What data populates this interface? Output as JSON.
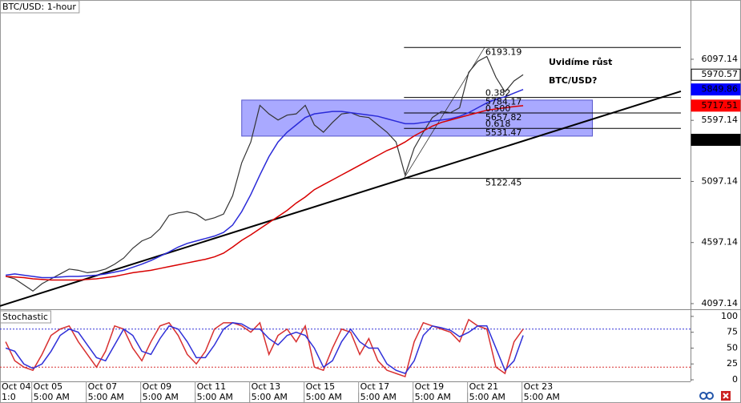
{
  "chart_data": [
    {
      "type": "line",
      "title": "BTC/USD: 1-hour",
      "annotation": [
        "Uvidíme růst",
        "BTC/USD?"
      ],
      "x": [
        6,
        14,
        22,
        30,
        38,
        46,
        54,
        62,
        70,
        78,
        86,
        94,
        102,
        110,
        118,
        126,
        134,
        142,
        150,
        158,
        166,
        174,
        182,
        190,
        198,
        206,
        214,
        222,
        230,
        238,
        246,
        254,
        262,
        270,
        278,
        286,
        294,
        302,
        310,
        318,
        326,
        334,
        342,
        350,
        358,
        366,
        374,
        382,
        390,
        398,
        406,
        414,
        422,
        430,
        438,
        446,
        454,
        462
      ],
      "series": [
        {
          "color": "#333333",
          "tag_color": "#ffffff",
          "values": [
            4320,
            4300,
            4250,
            4200,
            4260,
            4300,
            4340,
            4380,
            4370,
            4350,
            4360,
            4380,
            4420,
            4470,
            4550,
            4610,
            4640,
            4710,
            4820,
            4840,
            4850,
            4830,
            4780,
            4800,
            4830,
            4980,
            5250,
            5420,
            5720,
            5650,
            5600,
            5640,
            5650,
            5720,
            5560,
            5500,
            5580,
            5650,
            5660,
            5630,
            5620,
            5560,
            5500,
            5420,
            5150,
            5370,
            5500,
            5620,
            5670,
            5660,
            5700,
            5990,
            6080,
            6120,
            5950,
            5830,
            5920,
            5970.57
          ]
        },
        {
          "color": "#2a2ad8",
          "tag_color": "#0000ff",
          "values": [
            4330,
            4340,
            4330,
            4320,
            4310,
            4310,
            4315,
            4320,
            4320,
            4325,
            4330,
            4340,
            4355,
            4370,
            4395,
            4420,
            4450,
            4485,
            4520,
            4560,
            4590,
            4610,
            4630,
            4650,
            4680,
            4740,
            4850,
            4990,
            5150,
            5300,
            5420,
            5500,
            5560,
            5620,
            5650,
            5660,
            5670,
            5670,
            5660,
            5650,
            5640,
            5630,
            5610,
            5590,
            5570,
            5570,
            5580,
            5590,
            5600,
            5610,
            5630,
            5660,
            5700,
            5740,
            5770,
            5790,
            5820,
            5849.86
          ]
        },
        {
          "color": "#d80000",
          "tag_color": "#ff0000",
          "values": [
            4320,
            4315,
            4310,
            4300,
            4295,
            4290,
            4290,
            4290,
            4290,
            4295,
            4300,
            4310,
            4320,
            4335,
            4350,
            4360,
            4370,
            4385,
            4400,
            4415,
            4430,
            4445,
            4460,
            4480,
            4510,
            4560,
            4615,
            4660,
            4710,
            4760,
            4810,
            4860,
            4920,
            4970,
            5030,
            5070,
            5110,
            5150,
            5190,
            5230,
            5270,
            5310,
            5350,
            5380,
            5420,
            5470,
            5510,
            5550,
            5580,
            5600,
            5620,
            5640,
            5660,
            5680,
            5690,
            5700,
            5710,
            5717.51
          ]
        }
      ],
      "extra_tag": {
        "value": 5437.74,
        "color": "#000000"
      },
      "trendline": {
        "x": [
          1,
          601
        ],
        "values": [
          4078,
          5835
        ],
        "color": "#000000"
      },
      "zone": {
        "x": [
          214,
          523
        ],
        "values": [
          5468,
          5763
        ],
        "color": "#8c8cff"
      },
      "fibonacci": {
        "xlim": [
          357,
          601
        ],
        "high": {
          "x": 428,
          "value": 6193.19
        },
        "low": {
          "x": 357,
          "value": 5122.45
        },
        "levels": [
          {
            "ratio": "0.382",
            "value": 5784.17
          },
          {
            "ratio": "0.500",
            "value": 5657.82
          },
          {
            "ratio": "0.618",
            "value": 5531.47
          }
        ]
      },
      "xlim": [
        1,
        609.5
      ],
      "ylim": [
        4051,
        6582
      ],
      "yticks": [
        4097.14,
        4597.14,
        5097.14,
        5597.14,
        6097.14
      ]
    },
    {
      "type": "line",
      "title": "Stochastic",
      "x": [
        6,
        14,
        22,
        30,
        38,
        46,
        54,
        62,
        70,
        78,
        86,
        94,
        102,
        110,
        118,
        126,
        134,
        142,
        150,
        158,
        166,
        174,
        182,
        190,
        198,
        206,
        214,
        222,
        230,
        238,
        246,
        254,
        262,
        270,
        278,
        286,
        294,
        302,
        310,
        318,
        326,
        334,
        342,
        350,
        358,
        366,
        374,
        382,
        390,
        398,
        406,
        414,
        422,
        430,
        438,
        446,
        454,
        462
      ],
      "series": [
        {
          "color": "#d83030",
          "values": [
            60,
            30,
            20,
            15,
            40,
            70,
            80,
            85,
            60,
            40,
            20,
            45,
            85,
            80,
            50,
            30,
            60,
            85,
            90,
            70,
            40,
            25,
            45,
            80,
            90,
            90,
            85,
            75,
            90,
            40,
            70,
            80,
            60,
            85,
            20,
            15,
            50,
            80,
            75,
            40,
            65,
            30,
            15,
            10,
            5,
            60,
            90,
            85,
            80,
            75,
            60,
            95,
            85,
            80,
            20,
            10,
            60,
            80
          ]
        },
        {
          "color": "#3030d8",
          "values": [
            50,
            45,
            25,
            18,
            25,
            45,
            70,
            80,
            75,
            55,
            35,
            30,
            55,
            80,
            70,
            45,
            40,
            65,
            85,
            80,
            60,
            35,
            35,
            55,
            80,
            90,
            88,
            80,
            80,
            65,
            55,
            70,
            75,
            70,
            50,
            20,
            30,
            60,
            80,
            60,
            50,
            50,
            25,
            15,
            10,
            30,
            70,
            85,
            82,
            78,
            68,
            75,
            85,
            85,
            50,
            15,
            30,
            70
          ]
        }
      ],
      "levels": [
        {
          "value": 80,
          "color": "#3030d8"
        },
        {
          "value": 20,
          "color": "#d83030"
        }
      ],
      "xlim": [
        1,
        609.5
      ],
      "ylim": [
        -2.5,
        110
      ],
      "yticks": [
        0,
        25,
        50,
        75,
        100
      ],
      "xticks": [
        {
          "value": 1,
          "label": "Oct 04"
        },
        {
          "value": 29,
          "label": "Oct 05"
        },
        {
          "value": 77,
          "label": "Oct 07"
        },
        {
          "value": 125,
          "label": "Oct 09"
        },
        {
          "value": 173,
          "label": "Oct 11"
        },
        {
          "value": 221,
          "label": "Oct 13"
        },
        {
          "value": 269,
          "label": "Oct 15"
        },
        {
          "value": 317,
          "label": "Oct 17"
        },
        {
          "value": 365,
          "label": "Oct 19"
        },
        {
          "value": 413,
          "label": "Oct 21"
        },
        {
          "value": 461,
          "label": "Oct 23"
        }
      ],
      "xticks_time": [
        {
          "value": 1,
          "label": "1:0"
        },
        {
          "value": 29,
          "label": "5:00 AM"
        },
        {
          "value": 77,
          "label": "5:00 AM"
        },
        {
          "value": 125,
          "label": "5:00 AM"
        },
        {
          "value": 173,
          "label": "5:00 AM"
        },
        {
          "value": 221,
          "label": "5:00 AM"
        },
        {
          "value": 269,
          "label": "5:00 AM"
        },
        {
          "value": 317,
          "label": "5:00 AM"
        },
        {
          "value": 365,
          "label": "5:00 AM"
        },
        {
          "value": 413,
          "label": "5:00 AM"
        },
        {
          "value": 461,
          "label": "5:00 AM"
        }
      ]
    }
  ]
}
